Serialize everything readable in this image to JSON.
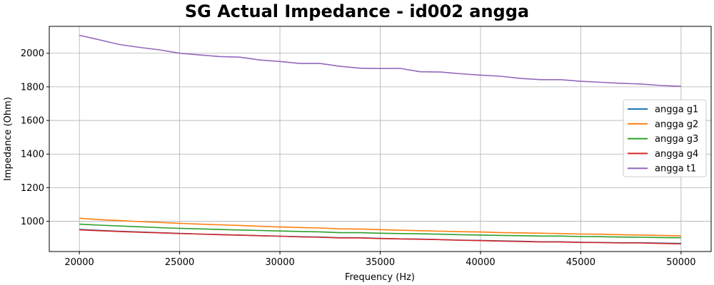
{
  "chart_data": {
    "type": "line",
    "title": "SG Actual Impedance - id002 angga",
    "xlabel": "Frequency (Hz)",
    "ylabel": "Impedance (Ohm)",
    "xlim": [
      18500,
      51500
    ],
    "ylim": [
      820,
      2160
    ],
    "xticks": [
      20000,
      25000,
      30000,
      35000,
      40000,
      45000,
      50000
    ],
    "yticks": [
      1000,
      1200,
      1400,
      1600,
      1800,
      2000
    ],
    "grid": true,
    "legend_position": "center-right",
    "x": [
      20000,
      21000,
      22000,
      23000,
      24000,
      25000,
      26000,
      27000,
      28000,
      29000,
      30000,
      31000,
      32000,
      33000,
      34000,
      35000,
      36000,
      37000,
      38000,
      39000,
      40000,
      41000,
      42000,
      43000,
      44000,
      45000,
      46000,
      47000,
      48000,
      49000,
      50000
    ],
    "series": [
      {
        "name": "angga g1",
        "color": "#1f77b4",
        "values": [
          952,
          946,
          941,
          936,
          932,
          928,
          924,
          921,
          918,
          914,
          911,
          908,
          906,
          902,
          902,
          898,
          895,
          894,
          891,
          888,
          886,
          883,
          881,
          878,
          878,
          875,
          874,
          872,
          872,
          870,
          868
        ]
      },
      {
        "name": "angga g2",
        "color": "#ff7f0e",
        "values": [
          1018,
          1010,
          1004,
          998,
          993,
          988,
          983,
          979,
          975,
          970,
          966,
          963,
          960,
          955,
          954,
          950,
          947,
          944,
          941,
          938,
          936,
          933,
          931,
          929,
          927,
          924,
          923,
          920,
          918,
          916,
          913
        ]
      },
      {
        "name": "angga g3",
        "color": "#2ca02c",
        "values": [
          983,
          977,
          972,
          967,
          962,
          958,
          955,
          951,
          948,
          945,
          942,
          939,
          937,
          932,
          932,
          929,
          927,
          925,
          923,
          920,
          918,
          916,
          914,
          912,
          912,
          909,
          908,
          906,
          905,
          903,
          902
        ]
      },
      {
        "name": "angga g4",
        "color": "#d62728",
        "values": [
          949,
          944,
          939,
          935,
          931,
          927,
          924,
          920,
          917,
          914,
          911,
          907,
          905,
          901,
          901,
          897,
          895,
          893,
          891,
          887,
          885,
          882,
          880,
          877,
          877,
          874,
          873,
          871,
          871,
          868,
          866
        ]
      },
      {
        "name": "angga t1",
        "color": "#9467bd",
        "values": [
          2107,
          2080,
          2052,
          2035,
          2020,
          2000,
          1990,
          1980,
          1977,
          1960,
          1951,
          1939,
          1939,
          1922,
          1911,
          1909,
          1910,
          1890,
          1888,
          1878,
          1870,
          1863,
          1850,
          1843,
          1843,
          1833,
          1827,
          1821,
          1817,
          1808,
          1803
        ]
      }
    ]
  }
}
